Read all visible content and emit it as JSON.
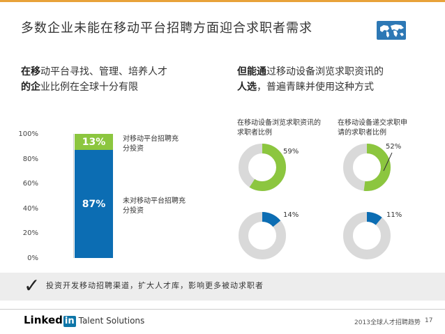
{
  "slide": {
    "title": "多数企业未能在移动平台招聘方面迎合求职者需求",
    "left_heading_bold1": "在移",
    "left_heading_rest1": "动平台寻找、管理、培养人才",
    "left_heading_bold2": "的企",
    "left_heading_rest2": "业比例在全球十分有限",
    "right_heading_bold1": "但能通",
    "right_heading_rest1": "过移动设备浏览求职资讯的",
    "right_heading_bold2": "人选",
    "right_heading_rest2": "，普遍青睐并使用这种方式",
    "footer_check": "✓",
    "footer_text": "投资开发移动招聘渠道，扩大人才库，影响更多被动求职者",
    "brand_linked": "Linked",
    "brand_in": "in",
    "brand_suffix": "Talent Solutions",
    "footer_note": "2013全球人才招聘趋势",
    "page_number": "17"
  },
  "colors": {
    "accent_orange": "#e8a23a",
    "green": "#8cc63f",
    "blue": "#0c6db3",
    "gray": "#d9d9d9"
  },
  "chart_data": [
    {
      "type": "bar",
      "stacked": true,
      "ylim": [
        0,
        100
      ],
      "yticks": [
        "100%",
        "80%",
        "60%",
        "40%",
        "20%",
        "0%"
      ],
      "series": [
        {
          "name": "对移动平台招聘充分投资",
          "value": 13,
          "label": "13%",
          "color": "#8cc63f"
        },
        {
          "name": "未对移动平台招聘充分投资",
          "value": 87,
          "label": "87%",
          "color": "#0c6db3"
        }
      ],
      "labels": {
        "invested_l1": "对移动平台招聘充",
        "invested_l2": "分投资",
        "not_invested_l1": "未对移动平台招聘充",
        "not_invested_l2": "分投资"
      }
    },
    {
      "type": "pie",
      "caption_col1_l1": "在移动设备浏览求职资讯的",
      "caption_col1_l2": "求职者比例",
      "caption_col2_l1": "在移动设备递交求职申",
      "caption_col2_l2": "请的求职者比例",
      "donuts": [
        {
          "id": "browse_top",
          "value": 59,
          "label": "59%",
          "color": "#8cc63f"
        },
        {
          "id": "apply_top",
          "value": 52,
          "label": "52%",
          "color": "#8cc63f"
        },
        {
          "id": "browse_bottom",
          "value": 14,
          "label": "14%",
          "color": "#0c6db3"
        },
        {
          "id": "apply_bottom",
          "value": 11,
          "label": "11%",
          "color": "#0c6db3"
        }
      ]
    }
  ]
}
